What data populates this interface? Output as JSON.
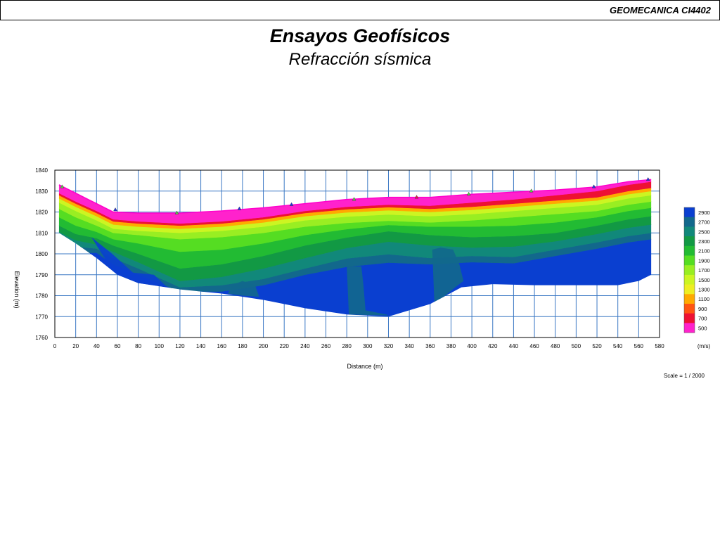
{
  "header": {
    "course": "GEOMECANICA CI4402"
  },
  "slide": {
    "title": "Ensayos Geofísicos",
    "subtitle": "Refracción sísmica"
  },
  "chart_data": {
    "type": "heatmap",
    "title": "",
    "xlabel": "Distance (m)",
    "ylabel": "Elevation (m)",
    "xlim": [
      0,
      580
    ],
    "ylim": [
      1760,
      1840
    ],
    "x_ticks": [
      0,
      20,
      40,
      60,
      80,
      100,
      120,
      140,
      160,
      180,
      200,
      220,
      240,
      260,
      280,
      300,
      320,
      340,
      360,
      380,
      400,
      420,
      440,
      460,
      480,
      500,
      520,
      540,
      560,
      580
    ],
    "y_ticks": [
      1760,
      1770,
      1780,
      1790,
      1800,
      1810,
      1820,
      1830,
      1840
    ],
    "grid": true,
    "scale_text": "Scale = 1 / 2000",
    "surface": {
      "x": [
        4,
        20,
        40,
        56,
        80,
        120,
        160,
        200,
        240,
        280,
        320,
        360,
        400,
        440,
        480,
        520,
        550,
        572
      ],
      "y": [
        1833,
        1829,
        1824,
        1820,
        1819.5,
        1819.5,
        1820.5,
        1822,
        1824,
        1826,
        1827,
        1827,
        1828.5,
        1829.5,
        1830.5,
        1832,
        1834.5,
        1835.5
      ]
    },
    "base": {
      "x": [
        4,
        20,
        40,
        60,
        80,
        120,
        160,
        200,
        240,
        280,
        320,
        360,
        390,
        420,
        460,
        500,
        540,
        560,
        572
      ],
      "y": [
        1810,
        1805,
        1798,
        1790,
        1786,
        1783,
        1781,
        1778,
        1774,
        1771,
        1770,
        1776,
        1784,
        1785.5,
        1785,
        1785,
        1785,
        1787,
        1790
      ]
    },
    "layers": [
      {
        "velocity": 500,
        "thickness": [
          4,
          4,
          3.5,
          3.5,
          4,
          5,
          5,
          4.5,
          3.5,
          3.5,
          3.5,
          4,
          4,
          3.5,
          2.5,
          2,
          1.5,
          1
        ]
      },
      {
        "velocity": 700,
        "thickness": [
          1,
          1,
          1,
          1,
          1,
          1,
          1,
          1,
          1,
          1.2,
          1.2,
          1.5,
          2,
          2,
          2.5,
          3,
          3,
          3
        ]
      },
      {
        "velocity": 1100,
        "thickness": [
          1.5,
          1.5,
          1.5,
          1.5,
          1.5,
          1.5,
          1.5,
          1.5,
          1.5,
          1.5,
          1.5,
          1.5,
          1.5,
          1.5,
          1.5,
          1.5,
          1.5,
          1.5
        ]
      },
      {
        "velocity": 1500,
        "thickness": [
          2,
          2,
          2,
          2,
          2,
          2,
          2,
          2,
          2,
          2,
          2,
          2,
          2,
          2,
          2,
          2,
          2,
          2
        ]
      },
      {
        "velocity": 1700,
        "thickness": [
          3,
          3,
          2.5,
          2,
          2,
          3,
          3,
          3,
          3,
          3,
          3,
          3,
          3,
          3,
          3,
          3,
          3,
          3
        ]
      },
      {
        "velocity": 1900,
        "thickness": [
          4,
          4,
          3,
          3,
          4,
          6,
          6,
          5,
          4,
          3,
          2,
          2,
          3,
          4,
          4,
          3,
          3,
          3
        ]
      },
      {
        "velocity": 2100,
        "thickness": [
          4,
          4,
          3,
          3,
          5,
          8,
          7,
          6,
          5,
          4,
          3,
          4,
          5,
          5,
          5,
          4,
          4,
          4
        ]
      },
      {
        "velocity": 2300,
        "thickness": [
          3,
          3,
          3,
          3,
          4,
          6,
          6,
          6,
          6,
          5,
          5,
          5,
          5,
          5,
          4,
          4,
          4,
          4
        ]
      },
      {
        "velocity": 2500,
        "thickness": [
          3,
          3,
          2,
          3,
          3,
          3,
          4,
          5,
          5,
          5,
          6,
          6,
          4,
          5,
          4,
          4,
          4,
          4
        ]
      },
      {
        "velocity": 2700,
        "thickness": [
          3,
          3,
          2,
          3,
          3,
          2,
          3,
          3,
          3,
          4,
          4,
          3,
          3,
          3,
          3,
          3,
          3,
          3
        ]
      },
      {
        "velocity": 2900,
        "thickness": [
          40,
          40,
          40,
          40,
          40,
          40,
          40,
          40,
          40,
          40,
          40,
          40,
          40,
          40,
          40,
          40,
          40,
          40
        ]
      }
    ],
    "anomalies": [
      {
        "velocity": 2700,
        "x": [
          280,
          294,
          296,
          298,
          318,
          320,
          282
        ],
        "y": [
          1794,
          1794,
          1785,
          1773,
          1771,
          1770.5,
          1771
        ]
      },
      {
        "velocity": 2700,
        "x": [
          362,
          370,
          382,
          388,
          392,
          384,
          372,
          364
        ],
        "y": [
          1802,
          1803,
          1802,
          1795,
          1787,
          1784,
          1779,
          1777
        ]
      },
      {
        "velocity": 2700,
        "x": [
          170,
          180,
          192,
          196,
          180,
          166
        ],
        "y": [
          1785,
          1787,
          1785,
          1779.5,
          1780,
          1781
        ]
      },
      {
        "velocity": 2900,
        "x": [
          35,
          55,
          75,
          95,
          108,
          80,
          58
        ],
        "y": [
          1808,
          1800,
          1791,
          1790,
          1784,
          1786,
          1790
        ]
      }
    ],
    "geophones": {
      "x": [
        7,
        58,
        117,
        177,
        227,
        287,
        347,
        397,
        457,
        517,
        569
      ],
      "y": [
        1832,
        1821,
        1819.5,
        1821.5,
        1823.5,
        1826,
        1827,
        1828.5,
        1830,
        1832,
        1835.5
      ],
      "colors": [
        "#55cc44",
        "#2233dd",
        "#55cc44",
        "#2233dd",
        "#2233dd",
        "#55cc44",
        "#dd2244",
        "#55cc44",
        "#55cc44",
        "#2233dd",
        "#2233dd"
      ]
    },
    "legend": {
      "placement": "right",
      "unit": "(m/s)",
      "entries": [
        2900,
        2700,
        2500,
        2300,
        2100,
        1900,
        1700,
        1500,
        1300,
        1100,
        900,
        700,
        500
      ],
      "colors": [
        "#0a3fd0",
        "#12688c",
        "#11887a",
        "#129944",
        "#22bb33",
        "#55dd22",
        "#99ee22",
        "#ccf522",
        "#eeee22",
        "#ffaa00",
        "#ff5511",
        "#ee1133",
        "#ff22cc"
      ]
    },
    "velocity_colors": {
      "500": "#ff22cc",
      "700": "#ee1133",
      "900": "#ff5511",
      "1100": "#ffaa00",
      "1300": "#eeee22",
      "1500": "#ccf522",
      "1700": "#99ee22",
      "1900": "#55dd22",
      "2100": "#22bb33",
      "2300": "#129944",
      "2500": "#11887a",
      "2700": "#12688c",
      "2900": "#0a3fd0"
    }
  }
}
